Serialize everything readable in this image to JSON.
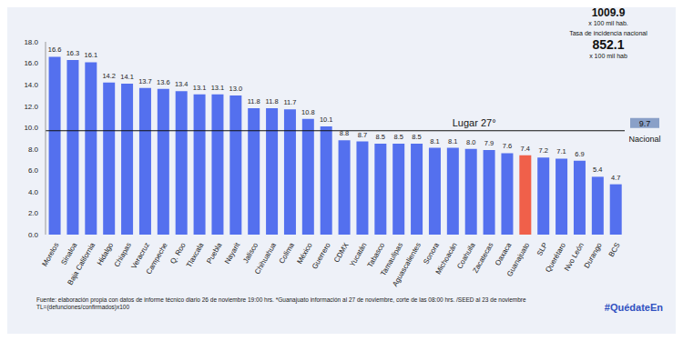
{
  "chart_data": {
    "type": "bar",
    "categories": [
      "Morelos",
      "Sinaloa",
      "Baja California",
      "Hidalgo",
      "Chiapas",
      "Veracruz",
      "Campeche",
      "Q. Roo",
      "Tlaxcala",
      "Puebla",
      "Nayarit",
      "Jalisco",
      "Chihuahua",
      "Colima",
      "México",
      "Guerrero",
      "CDMX",
      "Yucatán",
      "Tabasco",
      "Tamaulipas",
      "Aguascalientes",
      "Sonora",
      "Michoacán",
      "Coahuila",
      "Zacatecas",
      "Oaxaca",
      "Guanajuato",
      "SLP",
      "Querétaro",
      "Nvo León",
      "Durango",
      "BCS"
    ],
    "values": [
      16.6,
      16.3,
      16.1,
      14.2,
      14.1,
      13.7,
      13.6,
      13.4,
      13.1,
      13.1,
      13.0,
      11.8,
      11.8,
      11.7,
      10.8,
      10.1,
      8.8,
      8.7,
      8.5,
      8.5,
      8.5,
      8.1,
      8.1,
      8.0,
      7.9,
      7.6,
      7.4,
      7.2,
      7.1,
      6.9,
      5.4,
      4.7
    ],
    "value_labels": [
      "16.6",
      "16.3",
      "16.1",
      "14.2",
      "14.1",
      "13.7",
      "13.6",
      "13.4",
      "13.1",
      "13.1",
      "13.0",
      "11.8",
      "11.8",
      "11.7",
      "10.8",
      "10.1",
      "8.8",
      "8.7",
      "8.5",
      "8.5",
      "8.5",
      "8.1",
      "8.1",
      "8.0",
      "7.9",
      "7.6",
      "7.4",
      "7.2",
      "7.1",
      "6.9",
      "5.4",
      "4.7"
    ],
    "colors": [
      "#5470ee",
      "#5470ee",
      "#5470ee",
      "#5470ee",
      "#5470ee",
      "#5470ee",
      "#5470ee",
      "#5470ee",
      "#5470ee",
      "#5470ee",
      "#5470ee",
      "#5470ee",
      "#5470ee",
      "#5470ee",
      "#5470ee",
      "#5470ee",
      "#5470ee",
      "#5470ee",
      "#5470ee",
      "#5470ee",
      "#5470ee",
      "#5470ee",
      "#5470ee",
      "#5470ee",
      "#5470ee",
      "#5470ee",
      "#f0604a",
      "#5470ee",
      "#5470ee",
      "#5470ee",
      "#5470ee",
      "#5470ee"
    ],
    "ylim": [
      0,
      18
    ],
    "yticks": [
      {
        "value": 0,
        "label": "0.0"
      },
      {
        "value": 2,
        "label": "2.0"
      },
      {
        "value": 4,
        "label": "4.0"
      },
      {
        "value": 6,
        "label": "6.0"
      },
      {
        "value": 8,
        "label": "8.0"
      },
      {
        "value": 10,
        "label": "10.0"
      },
      {
        "value": 12,
        "label": "12.0"
      },
      {
        "value": 14,
        "label": "14.0"
      },
      {
        "value": 16,
        "label": "16.0"
      },
      {
        "value": 18,
        "label": "18.0"
      }
    ],
    "data_labels": true,
    "grid": false,
    "reference_line": {
      "value": 9.7,
      "label": "9.7",
      "name": "Nacional",
      "text": "Lugar 27°"
    },
    "header": {
      "value_1": "1009.9",
      "unit_1": "x 100 mil hab.",
      "subtitle": "Tasa de incidencia nacional",
      "value_2": "852.1",
      "unit_2": "x 100 mil hab"
    },
    "footer": {
      "source": "Fuente: elaboración propia con datos de informe técnico diario 26 de noviembre 19:00 hrs. *Guanajuato información al 27 de noviembre, corte de las 08:00 hrs. /SEED al 23 de noviembre",
      "formula": "TL=(defunciones/confirmados)x100",
      "hashtag": "#QuédateEn"
    }
  }
}
